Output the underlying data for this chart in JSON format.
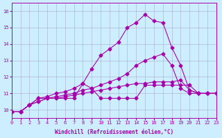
{
  "xlabel": "Windchill (Refroidissement éolien,°C)",
  "background_color": "#cceeff",
  "grid_color": "#aaaacc",
  "line_color": "#aa00aa",
  "xlim": [
    0,
    23
  ],
  "ylim": [
    9.5,
    16.5
  ],
  "yticks": [
    10,
    11,
    12,
    13,
    14,
    15,
    16
  ],
  "xticks": [
    0,
    1,
    2,
    3,
    4,
    5,
    6,
    7,
    8,
    9,
    10,
    11,
    12,
    13,
    14,
    15,
    16,
    17,
    18,
    19,
    20,
    21,
    22,
    23
  ],
  "series": [
    [
      9.9,
      9.9,
      10.3,
      10.7,
      10.7,
      10.7,
      10.7,
      10.7,
      11.6,
      11.3,
      10.7,
      10.7,
      10.7,
      10.7,
      10.7,
      11.5,
      11.5,
      11.5,
      11.5,
      11.5,
      11.5,
      11.0,
      11.0,
      11.0
    ],
    [
      9.9,
      9.9,
      10.3,
      10.5,
      10.7,
      10.7,
      10.8,
      10.9,
      11.0,
      11.1,
      11.2,
      11.3,
      11.4,
      11.5,
      11.6,
      11.6,
      11.7,
      11.7,
      11.7,
      11.8,
      11.2,
      11.0,
      11.0,
      11.0
    ],
    [
      9.9,
      9.9,
      10.3,
      10.5,
      10.7,
      10.8,
      10.9,
      11.0,
      11.2,
      11.3,
      11.5,
      11.7,
      11.9,
      12.2,
      12.7,
      13.0,
      13.2,
      13.4,
      12.7,
      11.3,
      11.0,
      11.0,
      11.0,
      11.0
    ],
    [
      9.9,
      9.9,
      10.3,
      10.7,
      10.8,
      11.0,
      11.1,
      11.3,
      11.6,
      12.5,
      13.3,
      13.7,
      14.1,
      15.0,
      15.3,
      15.8,
      15.4,
      15.3,
      13.8,
      12.7,
      11.2,
      11.0,
      11.0,
      11.0
    ]
  ]
}
